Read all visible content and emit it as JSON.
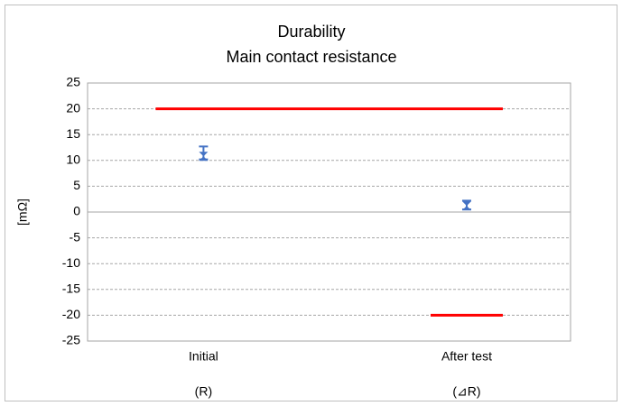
{
  "chart_data": {
    "type": "errorbar",
    "title": "Durability",
    "subtitle": "Main contact resistance",
    "y_label": "[mΩ]",
    "categories": [
      "Initial",
      "After test"
    ],
    "subcategories": [
      "(R)",
      "(⊿R)"
    ],
    "series": [
      {
        "color": "#4472c4",
        "values": [
          10.8,
          1.2
        ],
        "low": [
          10.2,
          0.5
        ],
        "high": [
          12.7,
          2.2
        ]
      }
    ],
    "limits": [
      {
        "color": "#ff0000",
        "values": [
          20,
          20
        ]
      },
      {
        "color": "#ff0000",
        "values": [
          null,
          -20
        ]
      }
    ],
    "ylim": [
      -25,
      25
    ],
    "yticks": [
      -25,
      -20,
      -15,
      -10,
      -5,
      0,
      5,
      10,
      15,
      20,
      25
    ],
    "grid": true
  }
}
